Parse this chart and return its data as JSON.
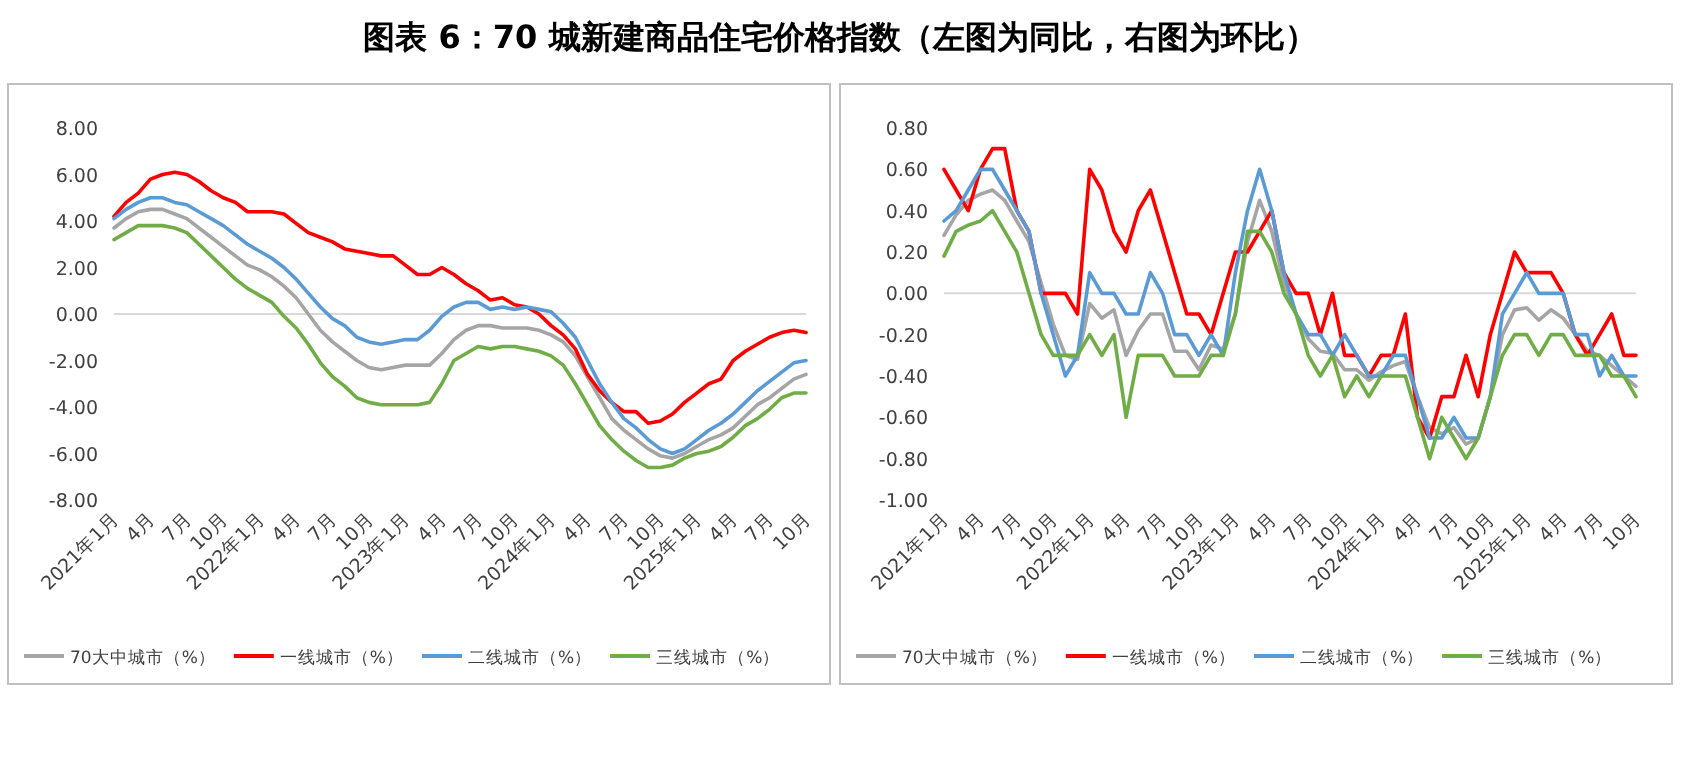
{
  "chart_data": [
    {
      "type": "line",
      "title": "图表 6：70 城新建商品住宅价格指数（左图为同比，右图为环比）",
      "legend": "bottom",
      "grid": false,
      "ref_lines": [
        {
          "axis": "y",
          "value": 0,
          "color": "#d9d9d9"
        }
      ],
      "x": [
        "2021-01",
        "2021-02",
        "2021-03",
        "2021-04",
        "2021-05",
        "2021-06",
        "2021-07",
        "2021-08",
        "2021-09",
        "2021-10",
        "2021-11",
        "2021-12",
        "2022-01",
        "2022-02",
        "2022-03",
        "2022-04",
        "2022-05",
        "2022-06",
        "2022-07",
        "2022-08",
        "2022-09",
        "2022-10",
        "2022-11",
        "2022-12",
        "2023-01",
        "2023-02",
        "2023-03",
        "2023-04",
        "2023-05",
        "2023-06",
        "2023-07",
        "2023-08",
        "2023-09",
        "2023-10",
        "2023-11",
        "2023-12",
        "2024-01",
        "2024-02",
        "2024-03",
        "2024-04",
        "2024-05",
        "2024-06",
        "2024-07",
        "2024-08",
        "2024-09",
        "2024-10",
        "2024-11",
        "2024-12",
        "2025-01",
        "2025-02",
        "2025-03",
        "2025-04",
        "2025-05",
        "2025-06",
        "2025-07",
        "2025-08",
        "2025-09",
        "2025-10"
      ],
      "xlim": [
        "2021-01",
        "2025-10"
      ],
      "xticks": [
        {
          "value": "2021-01",
          "label": "2021年1月"
        },
        {
          "value": "2021-04",
          "label": "4月"
        },
        {
          "value": "2021-07",
          "label": "7月"
        },
        {
          "value": "2021-10",
          "label": "10月"
        },
        {
          "value": "2022-01",
          "label": "2022年1月"
        },
        {
          "value": "2022-04",
          "label": "4月"
        },
        {
          "value": "2022-07",
          "label": "7月"
        },
        {
          "value": "2022-10",
          "label": "10月"
        },
        {
          "value": "2023-01",
          "label": "2023年1月"
        },
        {
          "value": "2023-04",
          "label": "4月"
        },
        {
          "value": "2023-07",
          "label": "7月"
        },
        {
          "value": "2023-10",
          "label": "10月"
        },
        {
          "value": "2024-01",
          "label": "2024年1月"
        },
        {
          "value": "2024-04",
          "label": "4月"
        },
        {
          "value": "2024-07",
          "label": "7月"
        },
        {
          "value": "2024-10",
          "label": "10月"
        },
        {
          "value": "2025-01",
          "label": "2025年1月"
        },
        {
          "value": "2025-04",
          "label": "4月"
        },
        {
          "value": "2025-07",
          "label": "7月"
        },
        {
          "value": "2025-10",
          "label": "10月"
        }
      ],
      "ylim": [
        -8,
        8
      ],
      "yticks": [
        {
          "value": 8,
          "label": "8.00"
        },
        {
          "value": 6,
          "label": "6.00"
        },
        {
          "value": 4,
          "label": "4.00"
        },
        {
          "value": 2,
          "label": "2.00"
        },
        {
          "value": 0,
          "label": "0.00"
        },
        {
          "value": -2,
          "label": "-2.00"
        },
        {
          "value": -4,
          "label": "-4.00"
        },
        {
          "value": -6,
          "label": "-6.00"
        },
        {
          "value": -8,
          "label": "-8.00"
        }
      ],
      "series": [
        {
          "name": "70大中城市（%）",
          "color": "#a5a5a5",
          "values": [
            3.7,
            4.1,
            4.4,
            4.5,
            4.5,
            4.3,
            4.1,
            3.7,
            3.3,
            2.9,
            2.5,
            2.1,
            1.9,
            1.6,
            1.2,
            0.7,
            0.0,
            -0.7,
            -1.2,
            -1.6,
            -2.0,
            -2.3,
            -2.4,
            -2.3,
            -2.2,
            -2.2,
            -2.2,
            -1.7,
            -1.1,
            -0.7,
            -0.5,
            -0.5,
            -0.6,
            -0.6,
            -0.6,
            -0.7,
            -0.9,
            -1.2,
            -1.8,
            -2.7,
            -3.6,
            -4.5,
            -5.0,
            -5.4,
            -5.8,
            -6.1,
            -6.2,
            -6.0,
            -5.7,
            -5.4,
            -5.2,
            -4.9,
            -4.4,
            -3.9,
            -3.6,
            -3.2,
            -2.8,
            -2.6
          ]
        },
        {
          "name": "一线城市（%）",
          "color": "#ff0000",
          "values": [
            4.2,
            4.8,
            5.2,
            5.8,
            6.0,
            6.1,
            6.0,
            5.7,
            5.3,
            5.0,
            4.8,
            4.4,
            4.4,
            4.4,
            4.3,
            3.9,
            3.5,
            3.3,
            3.1,
            2.8,
            2.7,
            2.6,
            2.5,
            2.5,
            2.1,
            1.7,
            1.7,
            2.0,
            1.7,
            1.3,
            1.0,
            0.6,
            0.7,
            0.4,
            0.3,
            0.0,
            -0.5,
            -0.9,
            -1.5,
            -2.6,
            -3.3,
            -3.8,
            -4.2,
            -4.2,
            -4.7,
            -4.6,
            -4.3,
            -3.8,
            -3.4,
            -3.0,
            -2.8,
            -2.0,
            -1.6,
            -1.3,
            -1.0,
            -0.8,
            -0.7,
            -0.8
          ]
        },
        {
          "name": "二线城市（%）",
          "color": "#5b9bd5",
          "values": [
            4.1,
            4.5,
            4.8,
            5.0,
            5.0,
            4.8,
            4.7,
            4.4,
            4.1,
            3.8,
            3.4,
            3.0,
            2.7,
            2.4,
            2.0,
            1.5,
            0.9,
            0.3,
            -0.2,
            -0.5,
            -1.0,
            -1.2,
            -1.3,
            -1.2,
            -1.1,
            -1.1,
            -0.7,
            -0.1,
            0.3,
            0.5,
            0.5,
            0.2,
            0.3,
            0.2,
            0.3,
            0.2,
            0.1,
            -0.4,
            -1.0,
            -2.0,
            -3.0,
            -3.8,
            -4.5,
            -4.9,
            -5.4,
            -5.8,
            -6.0,
            -5.8,
            -5.4,
            -5.0,
            -4.7,
            -4.3,
            -3.8,
            -3.3,
            -2.9,
            -2.5,
            -2.1,
            -2.0
          ]
        },
        {
          "name": "三线城市（%）",
          "color": "#70ad47",
          "values": [
            3.2,
            3.5,
            3.8,
            3.8,
            3.8,
            3.7,
            3.5,
            3.0,
            2.5,
            2.0,
            1.5,
            1.1,
            0.8,
            0.5,
            -0.1,
            -0.6,
            -1.3,
            -2.1,
            -2.7,
            -3.1,
            -3.6,
            -3.8,
            -3.9,
            -3.9,
            -3.9,
            -3.9,
            -3.8,
            -3.0,
            -2.0,
            -1.7,
            -1.4,
            -1.5,
            -1.4,
            -1.4,
            -1.5,
            -1.6,
            -1.8,
            -2.2,
            -3.0,
            -3.9,
            -4.8,
            -5.4,
            -5.9,
            -6.3,
            -6.6,
            -6.6,
            -6.5,
            -6.2,
            -6.0,
            -5.9,
            -5.7,
            -5.3,
            -4.8,
            -4.5,
            -4.1,
            -3.6,
            -3.4,
            -3.4
          ]
        }
      ]
    },
    {
      "type": "line",
      "legend": "bottom",
      "grid": false,
      "ref_lines": [
        {
          "axis": "y",
          "value": 0,
          "color": "#d9d9d9"
        }
      ],
      "x": [
        "2021-01",
        "2021-02",
        "2021-03",
        "2021-04",
        "2021-05",
        "2021-06",
        "2021-07",
        "2021-08",
        "2021-09",
        "2021-10",
        "2021-11",
        "2021-12",
        "2022-01",
        "2022-02",
        "2022-03",
        "2022-04",
        "2022-05",
        "2022-06",
        "2022-07",
        "2022-08",
        "2022-09",
        "2022-10",
        "2022-11",
        "2022-12",
        "2023-01",
        "2023-02",
        "2023-03",
        "2023-04",
        "2023-05",
        "2023-06",
        "2023-07",
        "2023-08",
        "2023-09",
        "2023-10",
        "2023-11",
        "2023-12",
        "2024-01",
        "2024-02",
        "2024-03",
        "2024-04",
        "2024-05",
        "2024-06",
        "2024-07",
        "2024-08",
        "2024-09",
        "2024-10",
        "2024-11",
        "2024-12",
        "2025-01",
        "2025-02",
        "2025-03",
        "2025-04",
        "2025-05",
        "2025-06",
        "2025-07",
        "2025-08",
        "2025-09",
        "2025-10"
      ],
      "xlim": [
        "2021-01",
        "2025-10"
      ],
      "xticks": [
        {
          "value": "2021-01",
          "label": "2021年1月"
        },
        {
          "value": "2021-04",
          "label": "4月"
        },
        {
          "value": "2021-07",
          "label": "7月"
        },
        {
          "value": "2021-10",
          "label": "10月"
        },
        {
          "value": "2022-01",
          "label": "2022年1月"
        },
        {
          "value": "2022-04",
          "label": "4月"
        },
        {
          "value": "2022-07",
          "label": "7月"
        },
        {
          "value": "2022-10",
          "label": "10月"
        },
        {
          "value": "2023-01",
          "label": "2023年1月"
        },
        {
          "value": "2023-04",
          "label": "4月"
        },
        {
          "value": "2023-07",
          "label": "7月"
        },
        {
          "value": "2023-10",
          "label": "10月"
        },
        {
          "value": "2024-01",
          "label": "2024年1月"
        },
        {
          "value": "2024-04",
          "label": "4月"
        },
        {
          "value": "2024-07",
          "label": "7月"
        },
        {
          "value": "2024-10",
          "label": "10月"
        },
        {
          "value": "2025-01",
          "label": "2025年1月"
        },
        {
          "value": "2025-04",
          "label": "4月"
        },
        {
          "value": "2025-07",
          "label": "7月"
        },
        {
          "value": "2025-10",
          "label": "10月"
        }
      ],
      "ylim": [
        -1,
        0.8
      ],
      "yticks": [
        {
          "value": 0.8,
          "label": "0.80"
        },
        {
          "value": 0.6,
          "label": "0.60"
        },
        {
          "value": 0.4,
          "label": "0.40"
        },
        {
          "value": 0.2,
          "label": "0.20"
        },
        {
          "value": 0,
          "label": "0.00"
        },
        {
          "value": -0.2,
          "label": "-0.20"
        },
        {
          "value": -0.4,
          "label": "-0.40"
        },
        {
          "value": -0.6,
          "label": "-0.60"
        },
        {
          "value": -0.8,
          "label": "-0.80"
        },
        {
          "value": -1,
          "label": "-1.00"
        }
      ],
      "series": [
        {
          "name": "70大中城市（%）",
          "color": "#a5a5a5",
          "values": [
            0.28,
            0.38,
            0.45,
            0.48,
            0.5,
            0.45,
            0.35,
            0.25,
            0.05,
            -0.15,
            -0.3,
            -0.32,
            -0.05,
            -0.12,
            -0.08,
            -0.3,
            -0.18,
            -0.1,
            -0.1,
            -0.28,
            -0.28,
            -0.37,
            -0.25,
            -0.27,
            -0.1,
            0.25,
            0.45,
            0.3,
            0.05,
            -0.1,
            -0.22,
            -0.28,
            -0.29,
            -0.37,
            -0.37,
            -0.42,
            -0.38,
            -0.35,
            -0.33,
            -0.5,
            -0.65,
            -0.68,
            -0.65,
            -0.73,
            -0.7,
            -0.5,
            -0.2,
            -0.08,
            -0.07,
            -0.13,
            -0.08,
            -0.12,
            -0.2,
            -0.28,
            -0.3,
            -0.35,
            -0.4,
            -0.45
          ]
        },
        {
          "name": "一线城市（%）",
          "color": "#ff0000",
          "values": [
            0.6,
            0.5,
            0.4,
            0.6,
            0.7,
            0.7,
            0.4,
            0.3,
            0.0,
            0.0,
            0.0,
            -0.1,
            0.6,
            0.5,
            0.3,
            0.2,
            0.4,
            0.5,
            0.3,
            0.1,
            -0.1,
            -0.1,
            -0.2,
            0.0,
            0.2,
            0.2,
            0.3,
            0.4,
            0.1,
            0.0,
            0.0,
            -0.2,
            0.0,
            -0.3,
            -0.3,
            -0.4,
            -0.3,
            -0.3,
            -0.1,
            -0.6,
            -0.7,
            -0.5,
            -0.5,
            -0.3,
            -0.5,
            -0.2,
            0.0,
            0.2,
            0.1,
            0.1,
            0.1,
            0.0,
            -0.2,
            -0.3,
            -0.2,
            -0.1,
            -0.3,
            -0.3
          ]
        },
        {
          "name": "二线城市（%）",
          "color": "#5b9bd5",
          "values": [
            0.35,
            0.4,
            0.5,
            0.6,
            0.6,
            0.5,
            0.4,
            0.3,
            0.0,
            -0.2,
            -0.4,
            -0.3,
            0.1,
            0.0,
            0.0,
            -0.1,
            -0.1,
            0.1,
            0.0,
            -0.2,
            -0.2,
            -0.3,
            -0.2,
            -0.3,
            0.1,
            0.4,
            0.6,
            0.4,
            0.1,
            -0.1,
            -0.2,
            -0.2,
            -0.3,
            -0.2,
            -0.3,
            -0.4,
            -0.4,
            -0.3,
            -0.3,
            -0.5,
            -0.7,
            -0.7,
            -0.6,
            -0.7,
            -0.7,
            -0.5,
            -0.1,
            0.0,
            0.1,
            0.0,
            0.0,
            0.0,
            -0.2,
            -0.2,
            -0.4,
            -0.3,
            -0.4,
            -0.4
          ]
        },
        {
          "name": "三线城市（%）",
          "color": "#70ad47",
          "values": [
            0.18,
            0.3,
            0.33,
            0.35,
            0.4,
            0.3,
            0.2,
            0.0,
            -0.2,
            -0.3,
            -0.3,
            -0.3,
            -0.2,
            -0.3,
            -0.2,
            -0.6,
            -0.3,
            -0.3,
            -0.3,
            -0.4,
            -0.4,
            -0.4,
            -0.3,
            -0.3,
            -0.1,
            0.3,
            0.3,
            0.2,
            0.0,
            -0.1,
            -0.3,
            -0.4,
            -0.3,
            -0.5,
            -0.4,
            -0.5,
            -0.4,
            -0.4,
            -0.4,
            -0.6,
            -0.8,
            -0.6,
            -0.7,
            -0.8,
            -0.7,
            -0.5,
            -0.3,
            -0.2,
            -0.2,
            -0.3,
            -0.2,
            -0.2,
            -0.3,
            -0.3,
            -0.3,
            -0.4,
            -0.4,
            -0.5
          ]
        }
      ]
    }
  ]
}
